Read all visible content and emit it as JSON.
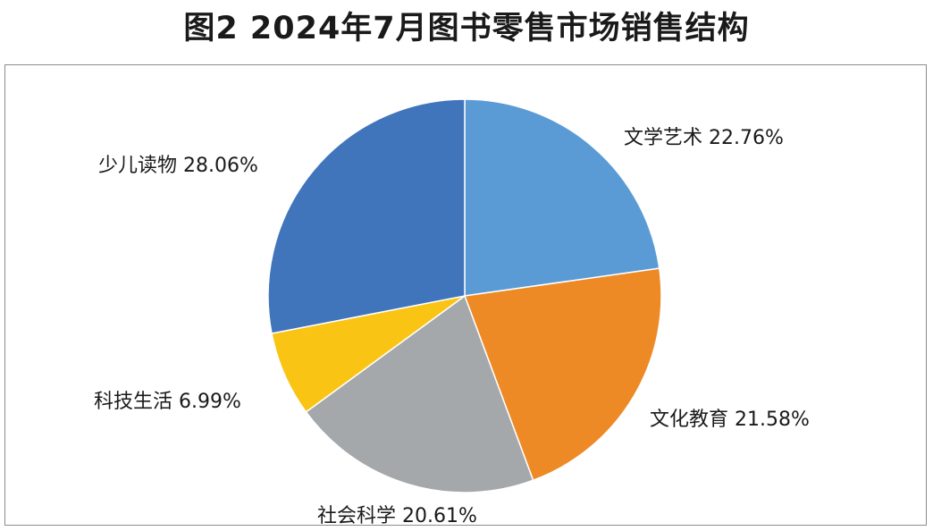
{
  "title": "图2 2024年7月图书零售市场销售结构",
  "chart_data": {
    "type": "pie",
    "title": "图2 2024年7月图书零售市场销售结构",
    "start_angle_deg": 0,
    "direction": "clockwise",
    "slices": [
      {
        "label": "文学艺术",
        "value": 22.76,
        "display": "文学艺术 22.76%",
        "color": "#5b9bd5"
      },
      {
        "label": "文化教育",
        "value": 21.58,
        "display": "文化教育 21.58%",
        "color": "#ed8a25"
      },
      {
        "label": "社会科学",
        "value": 20.61,
        "display": "社会科学 20.61%",
        "color": "#a5a8aa"
      },
      {
        "label": "科技生活",
        "value": 6.99,
        "display": "科技生活 6.99%",
        "color": "#f9c413"
      },
      {
        "label": "少儿读物",
        "value": 28.06,
        "display": "少儿读物 28.06%",
        "color": "#4175bb"
      }
    ]
  }
}
